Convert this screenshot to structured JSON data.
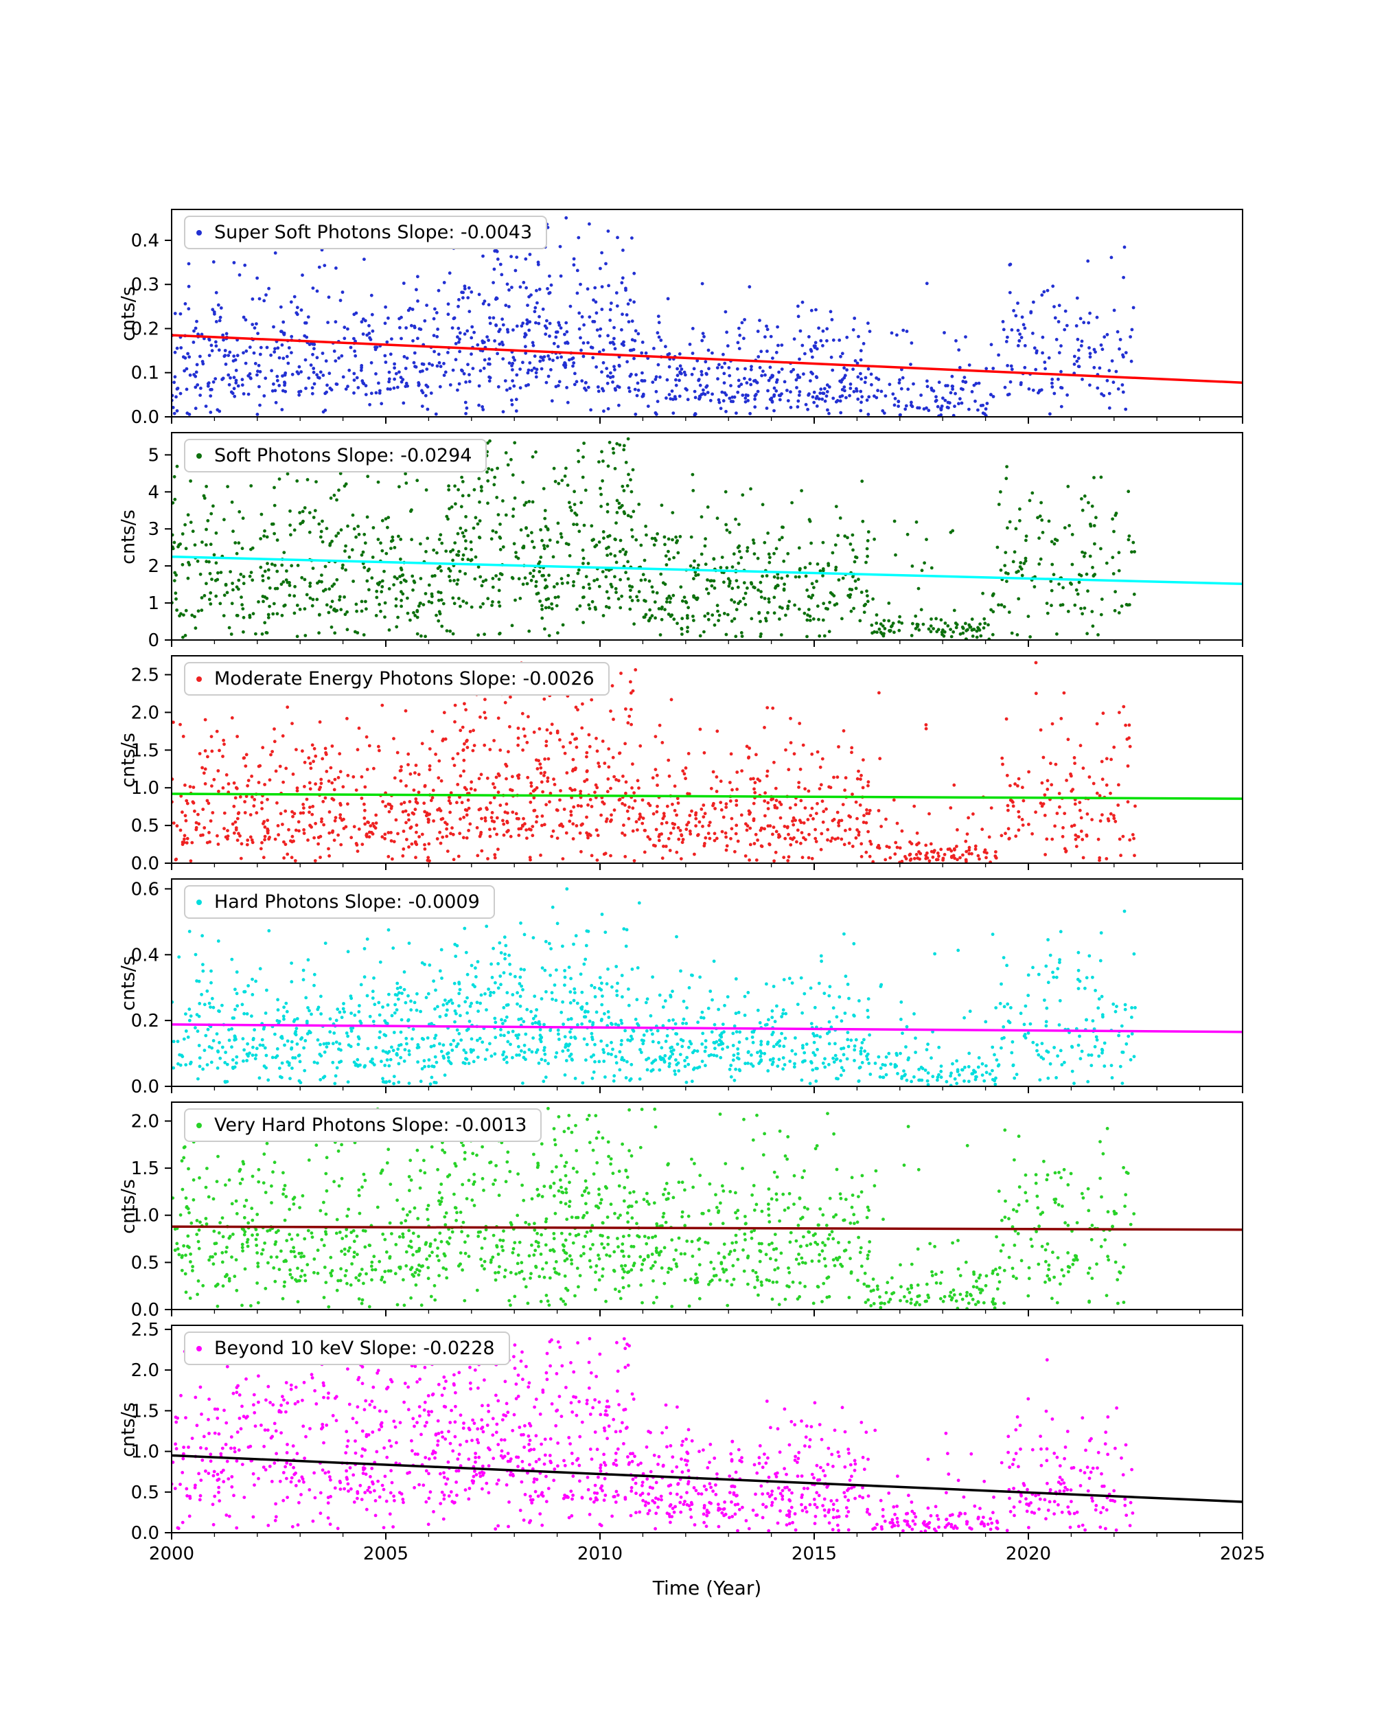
{
  "chart_data": {
    "type": "scatter",
    "xlabel": "Time (Year)",
    "ylabel": "cnts/s",
    "x_range": [
      2000,
      2025
    ],
    "data_x_range": [
      2000,
      2022.5
    ],
    "xticks": [
      2000,
      2005,
      2010,
      2015,
      2020,
      2025
    ],
    "xtick_labels": [
      "2000",
      "2005",
      "2010",
      "2015",
      "2020",
      "2025"
    ],
    "legend_position": "upper-left",
    "grid": false,
    "panels": [
      {
        "name": "super-soft-photons",
        "legend": "Super Soft Photons Slope: -0.0043",
        "slope": -0.0043,
        "point_color": "#2230d2",
        "trend_color": "#ff0000",
        "ylim": [
          0,
          0.47
        ],
        "yticks": [
          0.0,
          0.1,
          0.2,
          0.3,
          0.4
        ],
        "ytick_labels": [
          "0.0",
          "0.1",
          "0.2",
          "0.3",
          "0.4"
        ],
        "trend": {
          "x": [
            2000,
            2025
          ],
          "y": [
            0.185,
            0.0775
          ]
        },
        "scatter": {
          "seed": 11,
          "n": 1400,
          "segments": [
            {
              "x0": 2000,
              "x1": 2006.3,
              "w": 0.3,
              "mean": 0.16
            },
            {
              "x0": 2006.3,
              "x1": 2010.8,
              "w": 0.27,
              "mean": 0.205
            },
            {
              "x0": 2010.8,
              "x1": 2016.3,
              "w": 0.25,
              "mean": 0.115
            },
            {
              "x0": 2016.3,
              "x1": 2019.3,
              "w": 0.08,
              "mean": 0.045,
              "mix": {
                "frac": 0.25,
                "mean": 0.14
              }
            },
            {
              "x0": 2019.3,
              "x1": 2022.5,
              "w": 0.1,
              "mean": 0.165
            }
          ]
        }
      },
      {
        "name": "soft-photons",
        "legend": "Soft Photons Slope: -0.0294",
        "slope": -0.0294,
        "point_color": "#0d700d",
        "trend_color": "#00ffff",
        "ylim": [
          0,
          5.6
        ],
        "yticks": [
          0,
          1,
          2,
          3,
          4,
          5
        ],
        "ytick_labels": [
          "0",
          "1",
          "2",
          "3",
          "4",
          "5"
        ],
        "trend": {
          "x": [
            2000,
            2025
          ],
          "y": [
            2.25,
            1.515
          ]
        },
        "scatter": {
          "seed": 22,
          "n": 1400,
          "segments": [
            {
              "x0": 2000,
              "x1": 2006.3,
              "w": 0.3,
              "mean": 2.15
            },
            {
              "x0": 2006.3,
              "x1": 2010.8,
              "w": 0.27,
              "mean": 2.95
            },
            {
              "x0": 2010.8,
              "x1": 2016.3,
              "w": 0.25,
              "mean": 1.75
            },
            {
              "x0": 2016.3,
              "x1": 2019.3,
              "w": 0.08,
              "mean": 0.35,
              "mix": {
                "frac": 0.25,
                "mean": 1.9
              }
            },
            {
              "x0": 2019.3,
              "x1": 2022.5,
              "w": 0.1,
              "mean": 2.3
            }
          ]
        }
      },
      {
        "name": "moderate-energy-photons",
        "legend": "Moderate Energy Photons Slope: -0.0026",
        "slope": -0.0026,
        "point_color": "#ee2222",
        "trend_color": "#00e000",
        "ylim": [
          0,
          2.75
        ],
        "yticks": [
          0.0,
          0.5,
          1.0,
          1.5,
          2.0,
          2.5
        ],
        "ytick_labels": [
          "0.0",
          "0.5",
          "1.0",
          "1.5",
          "2.0",
          "2.5"
        ],
        "trend": {
          "x": [
            2000,
            2025
          ],
          "y": [
            0.92,
            0.855
          ]
        },
        "scatter": {
          "seed": 33,
          "n": 1400,
          "segments": [
            {
              "x0": 2000,
              "x1": 2006.3,
              "w": 0.3,
              "mean": 0.85
            },
            {
              "x0": 2006.3,
              "x1": 2010.8,
              "w": 0.27,
              "mean": 1.15
            },
            {
              "x0": 2010.8,
              "x1": 2016.3,
              "w": 0.25,
              "mean": 0.78
            },
            {
              "x0": 2016.3,
              "x1": 2019.3,
              "w": 0.08,
              "mean": 0.16,
              "mix": {
                "frac": 0.25,
                "mean": 0.9
              }
            },
            {
              "x0": 2019.3,
              "x1": 2022.5,
              "w": 0.1,
              "mean": 1.1
            }
          ]
        }
      },
      {
        "name": "hard-photons",
        "legend": "Hard Photons Slope: -0.0009",
        "slope": -0.0009,
        "point_color": "#00dddd",
        "trend_color": "#ff00ff",
        "ylim": [
          0,
          0.63
        ],
        "yticks": [
          0.0,
          0.2,
          0.4,
          0.6
        ],
        "ytick_labels": [
          "0.0",
          "0.2",
          "0.4",
          "0.6"
        ],
        "trend": {
          "x": [
            2000,
            2025
          ],
          "y": [
            0.188,
            0.1655
          ]
        },
        "scatter": {
          "seed": 44,
          "n": 1400,
          "segments": [
            {
              "x0": 2000,
              "x1": 2006.3,
              "w": 0.3,
              "mean": 0.185
            },
            {
              "x0": 2006.3,
              "x1": 2010.8,
              "w": 0.27,
              "mean": 0.245
            },
            {
              "x0": 2010.8,
              "x1": 2016.3,
              "w": 0.25,
              "mean": 0.165
            },
            {
              "x0": 2016.3,
              "x1": 2019.3,
              "w": 0.08,
              "mean": 0.05,
              "mix": {
                "frac": 0.25,
                "mean": 0.2
              }
            },
            {
              "x0": 2019.3,
              "x1": 2022.5,
              "w": 0.1,
              "mean": 0.215
            }
          ]
        }
      },
      {
        "name": "very-hard-photons",
        "legend": "Very Hard Photons Slope: -0.0013",
        "slope": -0.0013,
        "point_color": "#28d228",
        "trend_color": "#8b0000",
        "ylim": [
          0,
          2.2
        ],
        "yticks": [
          0.0,
          0.5,
          1.0,
          1.5,
          2.0
        ],
        "ytick_labels": [
          "0.0",
          "0.5",
          "1.0",
          "1.5",
          "2.0"
        ],
        "trend": {
          "x": [
            2000,
            2025
          ],
          "y": [
            0.88,
            0.8475
          ]
        },
        "scatter": {
          "seed": 55,
          "n": 1400,
          "segments": [
            {
              "x0": 2000,
              "x1": 2006.3,
              "w": 0.3,
              "mean": 0.85
            },
            {
              "x0": 2006.3,
              "x1": 2010.8,
              "w": 0.27,
              "mean": 1.1
            },
            {
              "x0": 2010.8,
              "x1": 2016.3,
              "w": 0.25,
              "mean": 0.82
            },
            {
              "x0": 2016.3,
              "x1": 2019.3,
              "w": 0.08,
              "mean": 0.18,
              "mix": {
                "frac": 0.25,
                "mean": 0.85
              }
            },
            {
              "x0": 2019.3,
              "x1": 2022.5,
              "w": 0.1,
              "mean": 1.02
            }
          ]
        }
      },
      {
        "name": "beyond-10-kev",
        "legend": "Beyond 10 keV Slope: -0.0228",
        "slope": -0.0228,
        "point_color": "#ff00ff",
        "trend_color": "#000000",
        "ylim": [
          0,
          2.55
        ],
        "yticks": [
          0.0,
          0.5,
          1.0,
          1.5,
          2.0,
          2.5
        ],
        "ytick_labels": [
          "0.0",
          "0.5",
          "1.0",
          "1.5",
          "2.0",
          "2.5"
        ],
        "trend": {
          "x": [
            2000,
            2025
          ],
          "y": [
            0.95,
            0.38
          ]
        },
        "scatter": {
          "seed": 66,
          "n": 1400,
          "segments": [
            {
              "x0": 2000,
              "x1": 2006.3,
              "w": 0.3,
              "mean": 1.2
            },
            {
              "x0": 2006.3,
              "x1": 2010.8,
              "w": 0.27,
              "mean": 1.3
            },
            {
              "x0": 2010.8,
              "x1": 2016.3,
              "w": 0.25,
              "mean": 0.66
            },
            {
              "x0": 2016.3,
              "x1": 2019.3,
              "w": 0.08,
              "mean": 0.15,
              "mix": {
                "frac": 0.2,
                "mean": 0.6
              }
            },
            {
              "x0": 2019.3,
              "x1": 2022.5,
              "w": 0.1,
              "mean": 0.72
            }
          ]
        }
      }
    ]
  }
}
